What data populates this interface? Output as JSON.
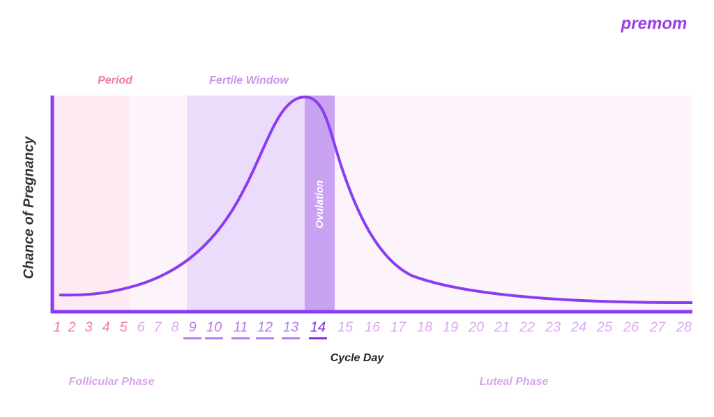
{
  "logo": "premom",
  "y_axis_label": "Chance of Pregnancy",
  "x_axis_label": "Cycle Day",
  "bands": {
    "period": "Period",
    "fertile_window": "Fertile Window",
    "ovulation": "Ovulation"
  },
  "phases": {
    "follicular": "Follicular Phase",
    "luteal": "Luteal Phase"
  },
  "days": [
    1,
    2,
    3,
    4,
    5,
    6,
    7,
    8,
    9,
    10,
    11,
    12,
    13,
    14,
    15,
    16,
    17,
    18,
    19,
    20,
    21,
    22,
    23,
    24,
    25,
    26,
    27,
    28
  ]
}
